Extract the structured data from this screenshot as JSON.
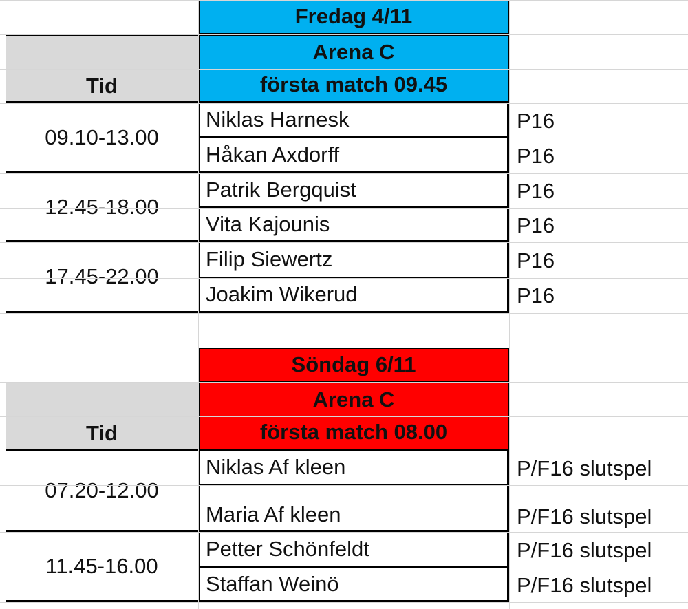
{
  "colors": {
    "fredag": "#00b0f0",
    "sondag": "#ff0000",
    "header_gray": "#d9d9d9",
    "border": "#000000",
    "gridline": "#d6d6d6"
  },
  "sections": [
    {
      "day": "Fredag 4/11",
      "arena": "Arena C",
      "first_match": "första match 09.45",
      "time_header": "Tid",
      "color": "#00b0f0",
      "slots": [
        {
          "time": "09.10-13.00",
          "people": [
            {
              "name": "Niklas Harnesk",
              "team": "P16"
            },
            {
              "name": "Håkan Axdorff",
              "team": "P16"
            }
          ]
        },
        {
          "time": "12.45-18.00",
          "people": [
            {
              "name": "Patrik Bergquist",
              "team": "P16"
            },
            {
              "name": "Vita Kajounis",
              "team": "P16"
            }
          ]
        },
        {
          "time": "17.45-22.00",
          "people": [
            {
              "name": "Filip Siewertz",
              "team": "P16"
            },
            {
              "name": "Joakim Wikerud",
              "team": "P16"
            }
          ]
        }
      ]
    },
    {
      "day": "Söndag 6/11",
      "arena": "Arena C",
      "first_match": "första match 08.00",
      "time_header": "Tid",
      "color": "#ff0000",
      "slots": [
        {
          "time": "07.20-12.00",
          "people": [
            {
              "name": "Niklas Af kleen",
              "team": "P/F16 slutspel"
            },
            {
              "name": "Maria Af kleen",
              "team": "P/F16 slutspel"
            }
          ]
        },
        {
          "time": "11.45-16.00",
          "people": [
            {
              "name": "Petter Schönfeldt",
              "team": "P/F16 slutspel"
            },
            {
              "name": "Staffan Weinö",
              "team": "P/F16 slutspel"
            }
          ]
        }
      ]
    }
  ]
}
